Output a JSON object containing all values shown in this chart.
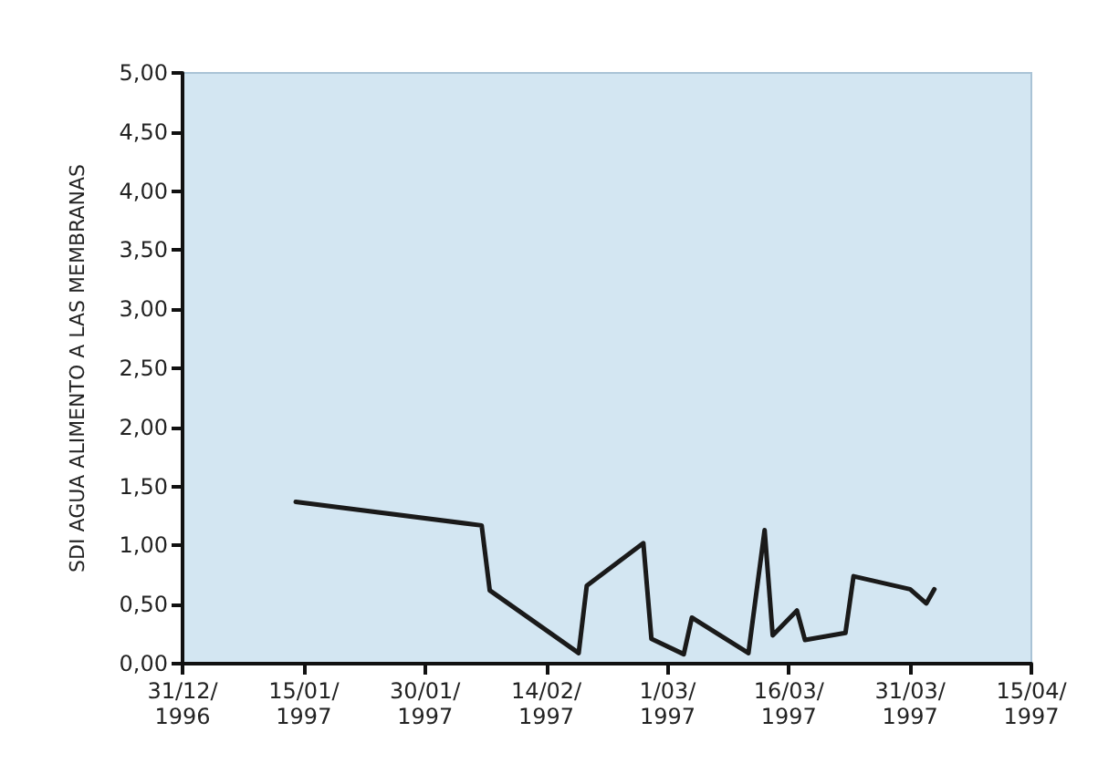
{
  "chart_data": {
    "type": "line",
    "ylabel": "SDI AGUA ALIMENTO A LAS MEMBRANAS",
    "x": [
      "1997-01-14",
      "1997-02-06",
      "1997-02-07",
      "1997-02-18",
      "1997-02-19",
      "1997-02-26",
      "1997-02-27",
      "1997-03-03",
      "1997-03-04",
      "1997-03-11",
      "1997-03-13",
      "1997-03-14",
      "1997-03-17",
      "1997-03-18",
      "1997-03-23",
      "1997-03-24",
      "1997-03-31",
      "1997-04-02",
      "1997-04-03"
    ],
    "values": [
      1.37,
      1.17,
      0.62,
      0.09,
      0.66,
      1.02,
      0.21,
      0.08,
      0.39,
      0.09,
      1.13,
      0.24,
      0.45,
      0.2,
      0.26,
      0.74,
      0.63,
      0.51,
      0.63
    ],
    "color": "#1a1a1a",
    "marker": "none",
    "line_style": "solid",
    "grid": false,
    "xlim": [
      "1996-12-31",
      "1997-04-15"
    ],
    "xticks": [
      {
        "value": "1996-12-31",
        "label": "31/12/\n1996"
      },
      {
        "value": "1997-01-15",
        "label": "15/01/\n1997"
      },
      {
        "value": "1997-01-30",
        "label": "30/01/\n1997"
      },
      {
        "value": "1997-02-14",
        "label": "14/02/\n1997"
      },
      {
        "value": "1997-03-01",
        "label": "1/03/\n1997"
      },
      {
        "value": "1997-03-16",
        "label": "16/03/\n1997"
      },
      {
        "value": "1997-03-31",
        "label": "31/03/\n1997"
      },
      {
        "value": "1997-04-15",
        "label": "15/04/\n1997"
      }
    ],
    "ylim": [
      0,
      5
    ],
    "yticks": [
      {
        "value": 0,
        "label": "0,00"
      },
      {
        "value": 0.5,
        "label": "0,50"
      },
      {
        "value": 1,
        "label": "1,00"
      },
      {
        "value": 1.5,
        "label": "1,50"
      },
      {
        "value": 2,
        "label": "2,00"
      },
      {
        "value": 2.5,
        "label": "2,50"
      },
      {
        "value": 3,
        "label": "3,00"
      },
      {
        "value": 3.5,
        "label": "3,50"
      },
      {
        "value": 4,
        "label": "4,00"
      },
      {
        "value": 4.5,
        "label": "4,50"
      },
      {
        "value": 5,
        "label": "5,00"
      }
    ]
  }
}
